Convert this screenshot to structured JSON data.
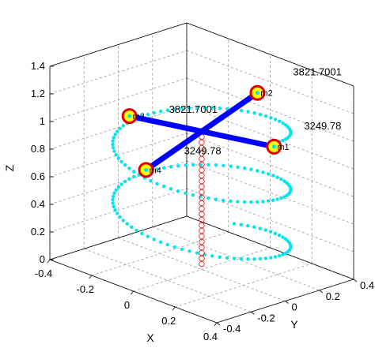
{
  "chart_data": {
    "type": "scatter",
    "title": "",
    "xlabel": "X",
    "ylabel": "Y",
    "zlabel": "Z",
    "xlim": [
      -0.4,
      0.4
    ],
    "ylim": [
      -0.4,
      0.4
    ],
    "zlim": [
      0,
      1.4
    ],
    "x_ticks": [
      -0.4,
      -0.2,
      0,
      0.2,
      0.4
    ],
    "y_ticks": [
      -0.4,
      -0.2,
      0,
      0.2,
      0.4
    ],
    "z_ticks": [
      0,
      0.2,
      0.4,
      0.6,
      0.8,
      1,
      1.2,
      1.4
    ],
    "x_tick_labels": [
      "-0.4",
      "-0.2",
      "0",
      "0.2",
      "0.4"
    ],
    "y_tick_labels": [
      "-0.4",
      "-0.2",
      "0",
      "0.2",
      "0.4"
    ],
    "z_tick_labels": [
      "0",
      "0.2",
      "0.4",
      "0.6",
      "0.8",
      "1",
      "1.2",
      "1.4"
    ],
    "grid": true,
    "box": true,
    "colors": {
      "arms": "#0000ff",
      "trajectory": "#00e5ee",
      "rotor_fill": "#ffff00",
      "rotor_edge": "#dd0000",
      "mast": "#dd2222",
      "grid": "#9a9a9a",
      "axes": "#000000"
    },
    "hub": [
      0,
      0,
      1.0
    ],
    "rotors": [
      {
        "name": "m1",
        "x": 0.33,
        "y": 0.02,
        "z": 1.07
      },
      {
        "name": "m2",
        "x": -0.02,
        "y": 0.35,
        "z": 1.13
      },
      {
        "name": "m3",
        "x": -0.33,
        "y": -0.02,
        "z": 0.93
      },
      {
        "name": "m4",
        "x": 0.02,
        "y": -0.35,
        "z": 0.87
      }
    ],
    "annotations": [
      {
        "text": "3821.7001",
        "near": "m2"
      },
      {
        "text": "3249.78",
        "near": "m1"
      },
      {
        "text": "3821.7001",
        "near": "m3"
      },
      {
        "text": "3249.78",
        "near": "m4"
      }
    ],
    "mast_z": [
      0.04,
      0.08,
      0.12,
      0.16,
      0.2,
      0.24,
      0.28,
      0.32,
      0.36,
      0.4,
      0.44,
      0.48,
      0.52,
      0.56,
      0.6,
      0.64,
      0.68,
      0.72,
      0.76,
      0.8,
      0.84,
      0.88,
      0.92,
      0.96
    ],
    "trajectory_helix": {
      "radius": 0.33,
      "z_start": 1.1,
      "z_end": 0.15,
      "turns": 2.3,
      "points": 170
    }
  }
}
